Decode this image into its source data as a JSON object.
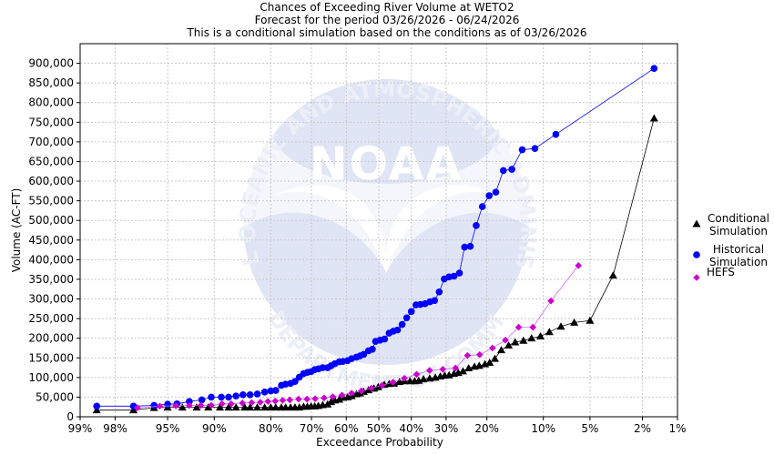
{
  "chart_data": {
    "type": "line",
    "title": "Chances of Exceeding River Volume at WETO2",
    "subtitle_1": "Forecast for the period 03/26/2026 - 06/24/2026",
    "subtitle_2": "This is a conditional simulation based on the conditions as of 03/26/2026",
    "xlabel": "Exceedance Probability",
    "ylabel": "Volume (AC-FT)",
    "x_scale": "normal-probability (reversed, 99% left to 1% right)",
    "xlim": [
      99,
      1
    ],
    "ylim": [
      0,
      950000
    ],
    "x_ticks": [
      99,
      98,
      95,
      90,
      80,
      70,
      60,
      50,
      40,
      30,
      20,
      10,
      5,
      2,
      1
    ],
    "x_tick_labels": [
      "99%",
      "98%",
      "95%",
      "90%",
      "80%",
      "70%",
      "60%",
      "50%",
      "40%",
      "30%",
      "20%",
      "10%",
      "5%",
      "2%",
      "1%"
    ],
    "y_ticks": [
      0,
      50000,
      100000,
      150000,
      200000,
      250000,
      300000,
      350000,
      400000,
      450000,
      500000,
      550000,
      600000,
      650000,
      700000,
      750000,
      800000,
      850000,
      900000
    ],
    "y_tick_labels": [
      "0",
      "50,000",
      "100,000",
      "150,000",
      "200,000",
      "250,000",
      "300,000",
      "350,000",
      "400,000",
      "450,000",
      "500,000",
      "550,000",
      "600,000",
      "650,000",
      "700,000",
      "750,000",
      "800,000",
      "850,000",
      "900,000"
    ],
    "grid": true,
    "legend_position": "right",
    "watermark": "NOAA",
    "watermark_text_top": "NATIONAL OCEANIC AND ATMOSPHERIC ADMINISTRATION",
    "watermark_text_bottom": "U.S. DEPARTMENT OF COMMERCE",
    "series": [
      {
        "name": "Conditional Simulation",
        "legend_lines": [
          "Conditional",
          "Simulation"
        ],
        "color": "#000000",
        "line_color": "#000000",
        "marker": "triangle",
        "points": [
          [
            98.6,
            17000
          ],
          [
            97.2,
            17000
          ],
          [
            96.0,
            23000
          ],
          [
            95.0,
            24000
          ],
          [
            93.7,
            24000
          ],
          [
            92.2,
            24000
          ],
          [
            90.8,
            24000
          ],
          [
            89.2,
            24000
          ],
          [
            87.9,
            24000
          ],
          [
            86.7,
            24000
          ],
          [
            85.2,
            24000
          ],
          [
            84.2,
            24000
          ],
          [
            82.8,
            24000
          ],
          [
            81.3,
            24000
          ],
          [
            80.0,
            24000
          ],
          [
            78.9,
            24000
          ],
          [
            77.6,
            24000
          ],
          [
            76.6,
            24000
          ],
          [
            75.4,
            24000
          ],
          [
            74.3,
            24000
          ],
          [
            73.2,
            24000
          ],
          [
            72.1,
            26000
          ],
          [
            71.1,
            26000
          ],
          [
            70.1,
            27000
          ],
          [
            69.1,
            27000
          ],
          [
            68.1,
            28000
          ],
          [
            66.9,
            30000
          ],
          [
            65.5,
            32000
          ],
          [
            64.5,
            38000
          ],
          [
            63.4,
            42000
          ],
          [
            62.1,
            44000
          ],
          [
            61.0,
            49000
          ],
          [
            59.6,
            50000
          ],
          [
            58.4,
            53000
          ],
          [
            56.9,
            58000
          ],
          [
            55.8,
            60000
          ],
          [
            54.7,
            64000
          ],
          [
            53.2,
            68000
          ],
          [
            51.5,
            72000
          ],
          [
            50.2,
            76000
          ],
          [
            48.3,
            82000
          ],
          [
            46.8,
            84000
          ],
          [
            45.3,
            85000
          ],
          [
            43.6,
            89000
          ],
          [
            42.1,
            91000
          ],
          [
            40.4,
            91000
          ],
          [
            39.0,
            91000
          ],
          [
            37.8,
            92000
          ],
          [
            36.4,
            96000
          ],
          [
            34.6,
            98000
          ],
          [
            33.0,
            100000
          ],
          [
            31.6,
            103000
          ],
          [
            30.4,
            105000
          ],
          [
            29.2,
            106000
          ],
          [
            27.9,
            110000
          ],
          [
            26.8,
            112000
          ],
          [
            25.6,
            116000
          ],
          [
            24.2,
            124000
          ],
          [
            22.8,
            128000
          ],
          [
            21.7,
            130000
          ],
          [
            20.4,
            134000
          ],
          [
            19.4,
            138000
          ],
          [
            18.3,
            148000
          ],
          [
            17.0,
            170000
          ],
          [
            15.6,
            182000
          ],
          [
            14.4,
            190000
          ],
          [
            13.0,
            194000
          ],
          [
            11.7,
            200000
          ],
          [
            10.4,
            205000
          ],
          [
            9.2,
            216000
          ],
          [
            7.8,
            230000
          ],
          [
            6.4,
            240000
          ],
          [
            5.0,
            245000
          ],
          [
            3.4,
            360000
          ],
          [
            1.6,
            760000
          ]
        ]
      },
      {
        "name": "Historical Simulation",
        "legend_lines": [
          "Historical",
          "Simulation"
        ],
        "color": "#0000ff",
        "line_color": "#0000ff",
        "marker": "circle",
        "points": [
          [
            98.6,
            27000
          ],
          [
            97.2,
            27000
          ],
          [
            96.0,
            29000
          ],
          [
            95.0,
            32000
          ],
          [
            94.2,
            33000
          ],
          [
            93.0,
            39000
          ],
          [
            91.6,
            43000
          ],
          [
            90.4,
            50000
          ],
          [
            89.0,
            50000
          ],
          [
            87.9,
            50000
          ],
          [
            86.7,
            53000
          ],
          [
            85.5,
            56000
          ],
          [
            84.2,
            56000
          ],
          [
            82.8,
            58000
          ],
          [
            81.3,
            63000
          ],
          [
            80.0,
            66000
          ],
          [
            78.9,
            67000
          ],
          [
            77.6,
            80000
          ],
          [
            76.6,
            83000
          ],
          [
            75.4,
            85000
          ],
          [
            74.3,
            90000
          ],
          [
            73.2,
            101000
          ],
          [
            72.1,
            110000
          ],
          [
            71.1,
            113000
          ],
          [
            70.1,
            115000
          ],
          [
            69.1,
            120000
          ],
          [
            68.1,
            122000
          ],
          [
            66.9,
            125000
          ],
          [
            65.5,
            125000
          ],
          [
            64.5,
            130000
          ],
          [
            63.4,
            135000
          ],
          [
            62.1,
            140000
          ],
          [
            61.0,
            141000
          ],
          [
            59.6,
            143000
          ],
          [
            58.4,
            148000
          ],
          [
            56.9,
            152000
          ],
          [
            55.8,
            155000
          ],
          [
            54.7,
            159000
          ],
          [
            53.2,
            168000
          ],
          [
            52.0,
            172000
          ],
          [
            51.0,
            192000
          ],
          [
            49.6,
            195000
          ],
          [
            48.2,
            198000
          ],
          [
            46.8,
            213000
          ],
          [
            45.5,
            218000
          ],
          [
            44.2,
            221000
          ],
          [
            42.8,
            235000
          ],
          [
            41.4,
            252000
          ],
          [
            40.0,
            268000
          ],
          [
            38.6,
            285000
          ],
          [
            37.3,
            286000
          ],
          [
            35.9,
            288000
          ],
          [
            34.5,
            293000
          ],
          [
            33.2,
            296000
          ],
          [
            31.9,
            318000
          ],
          [
            30.5,
            351000
          ],
          [
            29.2,
            356000
          ],
          [
            27.9,
            358000
          ],
          [
            26.5,
            366000
          ],
          [
            25.2,
            432000
          ],
          [
            23.8,
            434000
          ],
          [
            22.4,
            487000
          ],
          [
            21.0,
            535000
          ],
          [
            19.5,
            563000
          ],
          [
            18.1,
            572000
          ],
          [
            16.6,
            627000
          ],
          [
            15.0,
            630000
          ],
          [
            13.2,
            680000
          ],
          [
            11.2,
            683000
          ],
          [
            8.4,
            719000
          ],
          [
            1.6,
            887000
          ]
        ]
      },
      {
        "name": "HEFS",
        "legend_lines": [
          "HEFS"
        ],
        "color": "#cc00cc",
        "line_color": "#cc66ff",
        "marker": "diamond",
        "points": [
          [
            97.0,
            23000
          ],
          [
            95.6,
            27000
          ],
          [
            94.3,
            28000
          ],
          [
            93.0,
            29000
          ],
          [
            91.7,
            29000
          ],
          [
            90.4,
            29000
          ],
          [
            88.9,
            33000
          ],
          [
            87.5,
            33000
          ],
          [
            85.6,
            35000
          ],
          [
            83.9,
            36000
          ],
          [
            82.2,
            37000
          ],
          [
            80.6,
            39000
          ],
          [
            79.0,
            40000
          ],
          [
            77.3,
            42000
          ],
          [
            75.6,
            43000
          ],
          [
            73.4,
            45000
          ],
          [
            71.2,
            45000
          ],
          [
            69.0,
            46000
          ],
          [
            66.5,
            48000
          ],
          [
            64.0,
            51000
          ],
          [
            61.3,
            55000
          ],
          [
            58.4,
            60000
          ],
          [
            55.4,
            66000
          ],
          [
            52.3,
            73000
          ],
          [
            49.0,
            80000
          ],
          [
            45.6,
            88000
          ],
          [
            42.1,
            98000
          ],
          [
            38.4,
            108000
          ],
          [
            34.6,
            118000
          ],
          [
            30.9,
            121000
          ],
          [
            27.5,
            124000
          ],
          [
            24.5,
            156000
          ],
          [
            21.6,
            158000
          ],
          [
            18.8,
            175000
          ],
          [
            16.2,
            195000
          ],
          [
            13.8,
            228000
          ],
          [
            11.5,
            228000
          ],
          [
            9.0,
            295000
          ],
          [
            6.0,
            385000
          ]
        ]
      }
    ]
  }
}
